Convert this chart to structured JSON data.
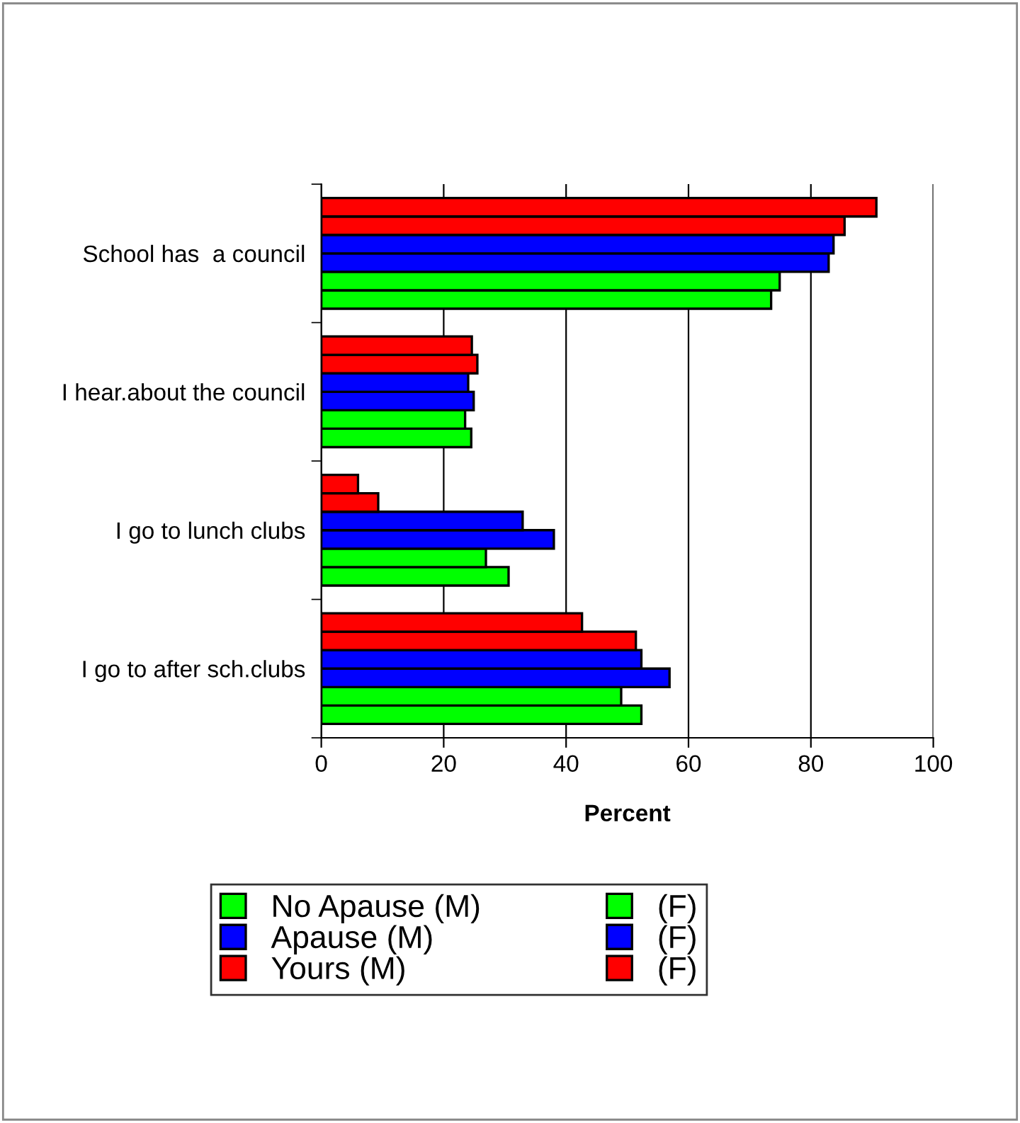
{
  "chart_data": {
    "type": "bar",
    "orientation": "horizontal",
    "xlabel": "Percent",
    "categories": [
      "School has  a council",
      "I hear.about the council",
      "I go to lunch clubs",
      "I go to after sch.clubs"
    ],
    "series": [
      {
        "name": "No Apause (M)",
        "color": "#00ff00",
        "values": [
          73.5,
          24.5,
          30.6,
          52.3
        ]
      },
      {
        "name": "(F)",
        "color": "#00ff00",
        "values": [
          74.9,
          23.5,
          26.9,
          49.0
        ]
      },
      {
        "name": "Apause (M)",
        "color": "#0000ff",
        "values": [
          82.9,
          24.9,
          38.0,
          56.9
        ]
      },
      {
        "name": "(F)",
        "color": "#0000ff",
        "values": [
          83.7,
          24.0,
          32.9,
          52.3
        ]
      },
      {
        "name": "Yours (M)",
        "color": "#ff0000",
        "values": [
          85.5,
          25.5,
          9.3,
          51.4
        ]
      },
      {
        "name": "(F)",
        "color": "#ff0000",
        "values": [
          90.7,
          24.6,
          6.0,
          42.6
        ]
      }
    ],
    "xlim": [
      0,
      100
    ],
    "xticks": [
      0,
      20,
      40,
      60,
      80,
      100
    ],
    "grid": "x",
    "legend": "bottom"
  }
}
